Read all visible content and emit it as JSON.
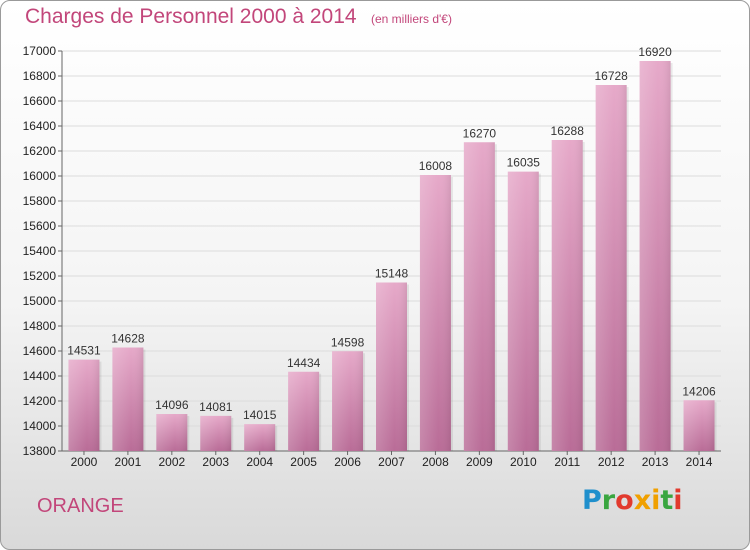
{
  "title": "Charges de Personnel 2000 à 2014",
  "subtitle": "(en milliers d'€)",
  "entity_label": "ORANGE",
  "logo": {
    "text": "Proxiti",
    "colors": [
      "#1f8fcc",
      "#3aa640",
      "#f0a000",
      "#e23a2e"
    ]
  },
  "chart_data": {
    "type": "bar",
    "title": "Charges de Personnel 2000 à 2014",
    "subtitle": "(en milliers d'€)",
    "xlabel": "",
    "ylabel": "",
    "categories": [
      "2000",
      "2001",
      "2002",
      "2003",
      "2004",
      "2005",
      "2006",
      "2007",
      "2008",
      "2009",
      "2010",
      "2011",
      "2012",
      "2013",
      "2014"
    ],
    "values": [
      14531,
      14628,
      14096,
      14081,
      14015,
      14434,
      14598,
      15148,
      16008,
      16270,
      16035,
      16288,
      16728,
      16920,
      14206
    ],
    "ylim": [
      13800,
      17000
    ],
    "yticks": [
      13800,
      14000,
      14200,
      14400,
      14600,
      14800,
      15000,
      15200,
      15400,
      15600,
      15800,
      16000,
      16200,
      16400,
      16600,
      16800,
      17000
    ],
    "grid": true,
    "bar_color": "#d889b2",
    "legend": "none"
  }
}
